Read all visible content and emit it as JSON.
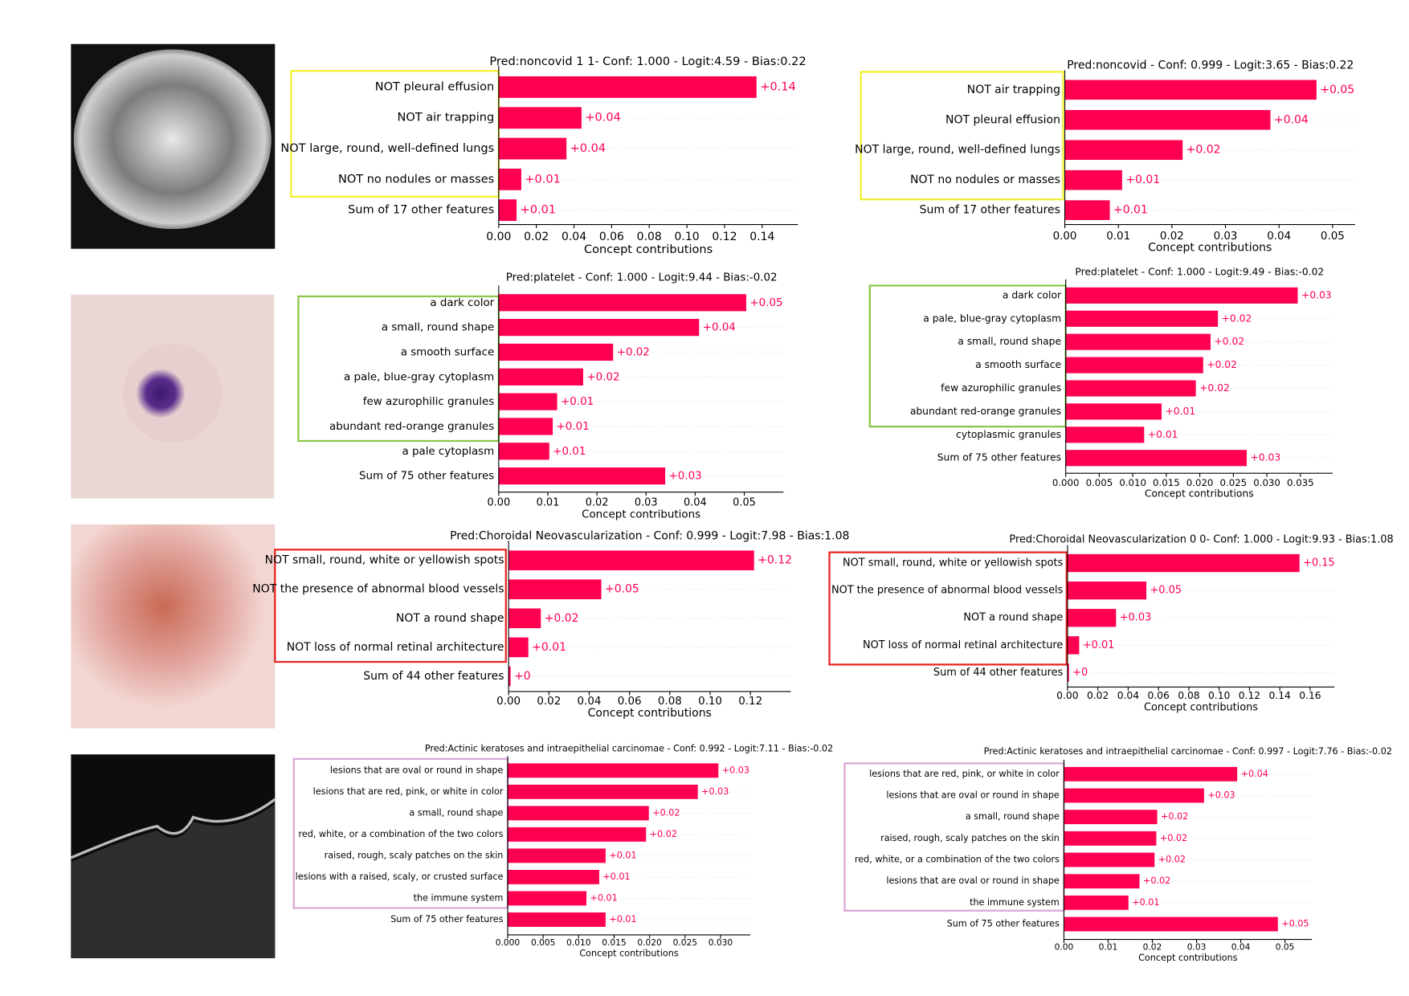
{
  "chart_data": [
    {
      "type": "barh",
      "title": "Pred:noncovid 1 1- Conf: 1.000 - Logit:4.59 - Bias:0.22",
      "xlabel": "Concept contributions",
      "color": "#ff0051",
      "categories": [
        "NOT pleural effusion",
        "NOT air trapping",
        "NOT large, round, well-defined lungs",
        "NOT no nodules or masses",
        "Sum of 17 other features"
      ],
      "values": [
        0.137,
        0.044,
        0.036,
        0.012,
        0.0095
      ],
      "value_labels": [
        "+0.14",
        "+0.04",
        "+0.04",
        "+0.01",
        "+0.01"
      ],
      "xlim": [
        0,
        0.159
      ],
      "xticks": [
        {
          "value": 0,
          "label": "0.00"
        },
        {
          "value": 0.02,
          "label": "0.02"
        },
        {
          "value": 0.04,
          "label": "0.04"
        },
        {
          "value": 0.06,
          "label": "0.06"
        },
        {
          "value": 0.08,
          "label": "0.08"
        },
        {
          "value": 0.1,
          "label": "0.10"
        },
        {
          "value": 0.12,
          "label": "0.12"
        },
        {
          "value": 0.14,
          "label": "0.14"
        }
      ]
    },
    {
      "type": "barh",
      "title": "Pred:noncovid - Conf: 0.999 - Logit:3.65 - Bias:0.22",
      "xlabel": "Concept contributions",
      "color": "#ff0051",
      "categories": [
        "NOT air trapping",
        "NOT pleural effusion",
        "NOT large, round, well-defined lungs",
        "NOT no nodules or masses",
        "Sum of 17 other features"
      ],
      "values": [
        0.047,
        0.0384,
        0.022,
        0.0107,
        0.0084
      ],
      "value_labels": [
        "+0.05",
        "+0.04",
        "+0.02",
        "+0.01",
        "+0.01"
      ],
      "xlim": [
        0,
        0.0542
      ],
      "xticks": [
        {
          "value": 0,
          "label": "0.00"
        },
        {
          "value": 0.01,
          "label": "0.01"
        },
        {
          "value": 0.02,
          "label": "0.02"
        },
        {
          "value": 0.03,
          "label": "0.03"
        },
        {
          "value": 0.04,
          "label": "0.04"
        },
        {
          "value": 0.05,
          "label": "0.05"
        }
      ]
    },
    {
      "type": "barh",
      "title": "Pred:platelet - Conf: 1.000 - Logit:9.44 - Bias:-0.02",
      "xlabel": "Concept contributions",
      "color": "#ff0051",
      "categories": [
        "a dark color",
        "a small, round shape",
        "a smooth surface",
        "a pale, blue-gray cytoplasm",
        "few azurophilic granules",
        "abundant red-orange granules",
        "a pale cytoplasm",
        "Sum of 75 other features"
      ],
      "values": [
        0.0504,
        0.0408,
        0.0233,
        0.0172,
        0.0119,
        0.011,
        0.0103,
        0.0339
      ],
      "value_labels": [
        "+0.05",
        "+0.04",
        "+0.02",
        "+0.02",
        "+0.01",
        "+0.01",
        "+0.01",
        "+0.03"
      ],
      "xlim": [
        0,
        0.058
      ],
      "xticks": [
        {
          "value": 0,
          "label": "0.00"
        },
        {
          "value": 0.01,
          "label": "0.01"
        },
        {
          "value": 0.02,
          "label": "0.02"
        },
        {
          "value": 0.03,
          "label": "0.03"
        },
        {
          "value": 0.04,
          "label": "0.04"
        },
        {
          "value": 0.05,
          "label": "0.05"
        }
      ]
    },
    {
      "type": "barh",
      "title": "Pred:platelet - Conf: 1.000 - Logit:9.49 - Bias:-0.02",
      "xlabel": "Concept contributions",
      "color": "#ff0051",
      "categories": [
        "a dark color",
        "a pale, blue-gray cytoplasm",
        "a small, round shape",
        "a smooth surface",
        "few azurophilic granules",
        "abundant red-orange granules",
        "cytoplasmic granules",
        "Sum of 75 other features"
      ],
      "values": [
        0.0346,
        0.0227,
        0.0216,
        0.0205,
        0.0194,
        0.0143,
        0.0117,
        0.027
      ],
      "value_labels": [
        "+0.03",
        "+0.02",
        "+0.02",
        "+0.02",
        "+0.02",
        "+0.01",
        "+0.01",
        "+0.03"
      ],
      "xlim": [
        0,
        0.0398
      ],
      "xticks": [
        {
          "value": 0,
          "label": "0.000"
        },
        {
          "value": 0.005,
          "label": "0.005"
        },
        {
          "value": 0.01,
          "label": "0.010"
        },
        {
          "value": 0.015,
          "label": "0.015"
        },
        {
          "value": 0.02,
          "label": "0.020"
        },
        {
          "value": 0.025,
          "label": "0.025"
        },
        {
          "value": 0.03,
          "label": "0.030"
        },
        {
          "value": 0.035,
          "label": "0.035"
        }
      ]
    },
    {
      "type": "barh",
      "title": "Pred:Choroidal Neovascularization - Conf: 0.999 - Logit:7.98 - Bias:1.08",
      "xlabel": "Concept contributions",
      "color": "#ff0051",
      "categories": [
        "NOT small, round, white or yellowish spots",
        "NOT the presence of abnormal blood vessels",
        "NOT a round shape",
        "NOT loss of normal retinal architecture",
        "Sum of 44 other features"
      ],
      "values": [
        0.1218,
        0.046,
        0.016,
        0.0098,
        0.001
      ],
      "value_labels": [
        "+0.12",
        "+0.05",
        "+0.02",
        "+0.01",
        "+0"
      ],
      "xlim": [
        0,
        0.14
      ],
      "xticks": [
        {
          "value": 0,
          "label": "0.00"
        },
        {
          "value": 0.02,
          "label": "0.02"
        },
        {
          "value": 0.04,
          "label": "0.04"
        },
        {
          "value": 0.06,
          "label": "0.06"
        },
        {
          "value": 0.08,
          "label": "0.08"
        },
        {
          "value": 0.1,
          "label": "0.10"
        },
        {
          "value": 0.12,
          "label": "0.12"
        }
      ]
    },
    {
      "type": "barh",
      "title": "Pred:Choroidal Neovascularization 0 0- Conf: 1.000 - Logit:9.93 - Bias:1.08",
      "xlabel": "Concept contributions",
      "color": "#ff0051",
      "categories": [
        "NOT small, round, white or yellowish spots",
        "NOT the presence of abnormal blood vessels",
        "NOT a round shape",
        "NOT loss of normal retinal architecture",
        "Sum of 44 other features"
      ],
      "values": [
        0.153,
        0.052,
        0.032,
        0.0077,
        0.001
      ],
      "value_labels": [
        "+0.15",
        "+0.05",
        "+0.03",
        "+0.01",
        "+0"
      ],
      "xlim": [
        0,
        0.176
      ],
      "xticks": [
        {
          "value": 0,
          "label": "0.00"
        },
        {
          "value": 0.02,
          "label": "0.02"
        },
        {
          "value": 0.04,
          "label": "0.04"
        },
        {
          "value": 0.06,
          "label": "0.06"
        },
        {
          "value": 0.08,
          "label": "0.08"
        },
        {
          "value": 0.1,
          "label": "0.10"
        },
        {
          "value": 0.12,
          "label": "0.12"
        },
        {
          "value": 0.14,
          "label": "0.14"
        },
        {
          "value": 0.16,
          "label": "0.16"
        }
      ]
    },
    {
      "type": "barh",
      "title": "Pred:Actinic keratoses and intraepithelial carcinomae - Conf: 0.992 - Logit:7.11 - Bias:-0.02",
      "xlabel": "Concept contributions",
      "color": "#ff0051",
      "categories": [
        "lesions that are oval or round in shape",
        "lesions that are red, pink, or white in color",
        "a small, round shape",
        "red, white, or a combination of the two colors",
        "raised, rough, scaly patches on the skin",
        "lesions with a raised, scaly, or crusted surface",
        "the immune system",
        "Sum of 75 other features"
      ],
      "values": [
        0.0297,
        0.0268,
        0.0199,
        0.0195,
        0.0138,
        0.0129,
        0.0111,
        0.0138
      ],
      "value_labels": [
        "+0.03",
        "+0.03",
        "+0.02",
        "+0.02",
        "+0.01",
        "+0.01",
        "+0.01",
        "+0.01"
      ],
      "xlim": [
        0,
        0.0342
      ],
      "xticks": [
        {
          "value": 0,
          "label": "0.000"
        },
        {
          "value": 0.005,
          "label": "0.005"
        },
        {
          "value": 0.01,
          "label": "0.010"
        },
        {
          "value": 0.015,
          "label": "0.015"
        },
        {
          "value": 0.02,
          "label": "0.020"
        },
        {
          "value": 0.025,
          "label": "0.025"
        },
        {
          "value": 0.03,
          "label": "0.030"
        }
      ]
    },
    {
      "type": "barh",
      "title": "Pred:Actinic keratoses and intraepithelial carcinomae - Conf: 0.997 - Logit:7.76 - Bias:-0.02",
      "xlabel": "Concept contributions",
      "color": "#ff0051",
      "categories": [
        "lesions that are red, pink, or white in color",
        "lesions that are oval or round in shape",
        "a small, round shape",
        "raised, rough, scaly patches on the skin",
        "red, white, or a combination of the two colors",
        "lesions that are oval or round in shape",
        "the immune system",
        "Sum of 75 other features"
      ],
      "values": [
        0.0392,
        0.0317,
        0.0211,
        0.0209,
        0.0205,
        0.0171,
        0.0146,
        0.0484
      ],
      "value_labels": [
        "+0.04",
        "+0.03",
        "+0.02",
        "+0.02",
        "+0.02",
        "+0.02",
        "+0.01",
        "+0.05"
      ],
      "xlim": [
        0,
        0.0561
      ],
      "xticks": [
        {
          "value": 0,
          "label": "0.00"
        },
        {
          "value": 0.01,
          "label": "0.01"
        },
        {
          "value": 0.02,
          "label": "0.02"
        },
        {
          "value": 0.03,
          "label": "0.03"
        },
        {
          "value": 0.04,
          "label": "0.04"
        },
        {
          "value": 0.05,
          "label": "0.05"
        }
      ]
    }
  ]
}
